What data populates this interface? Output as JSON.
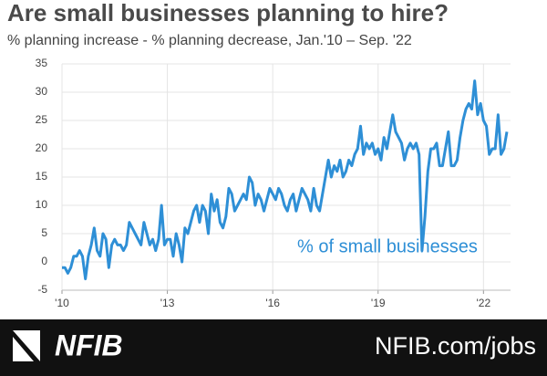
{
  "chart_data": {
    "type": "line",
    "title": "Are small businesses planning to hire?",
    "subtitle": "% planning increase - % planning decrease, Jan.'10 – Sep. '22",
    "categories": [
      "'10",
      null,
      null,
      null,
      null,
      null,
      null,
      null,
      null,
      null,
      null,
      null,
      null,
      null,
      null,
      null,
      null,
      null,
      null,
      null,
      null,
      null,
      null,
      null,
      null,
      null,
      null,
      null,
      null,
      null,
      null,
      null,
      null,
      null,
      null,
      null,
      "'13",
      null,
      null,
      null,
      null,
      null,
      null,
      null,
      null,
      null,
      null,
      null,
      null,
      null,
      null,
      null,
      null,
      null,
      null,
      null,
      null,
      null,
      null,
      null,
      null,
      null,
      null,
      null,
      null,
      null,
      null,
      null,
      null,
      null,
      null,
      null,
      "'16",
      null,
      null,
      null,
      null,
      null,
      null,
      null,
      null,
      null,
      null,
      null,
      null,
      null,
      null,
      null,
      null,
      null,
      null,
      null,
      null,
      null,
      null,
      null,
      null,
      null,
      null,
      null,
      null,
      null,
      null,
      null,
      null,
      null,
      null,
      null,
      "'19",
      null,
      null,
      null,
      null,
      null,
      null,
      null,
      null,
      null,
      null,
      null,
      null,
      null,
      null,
      null,
      null,
      null,
      null,
      null,
      null,
      null,
      null,
      null,
      null,
      null,
      null,
      null,
      null,
      null,
      null,
      null,
      null,
      null,
      null,
      null,
      "'22",
      null,
      null,
      null,
      null,
      null,
      null,
      null,
      null
    ],
    "series": [
      {
        "name": "% of small businesses",
        "color": "#2e8fd6",
        "values": [
          -1,
          -1,
          -2,
          -1,
          1,
          1,
          2,
          1,
          -3,
          1,
          3,
          6,
          2,
          1,
          5,
          4,
          -1,
          3,
          4,
          3,
          3,
          2,
          3,
          7,
          6,
          5,
          4,
          3,
          7,
          5,
          3,
          4,
          2,
          4,
          10,
          3,
          4,
          4,
          1,
          5,
          3,
          0,
          6,
          5,
          7,
          9,
          10,
          7,
          10,
          9,
          5,
          12,
          9,
          11,
          7,
          6,
          8,
          13,
          12,
          9,
          10,
          11,
          12,
          11,
          15,
          14,
          10,
          12,
          11,
          9,
          11,
          13,
          12,
          11,
          13,
          12,
          10,
          9,
          11,
          12,
          9,
          11,
          13,
          12,
          11,
          9,
          13,
          10,
          9,
          12,
          15,
          18,
          15,
          17,
          16,
          18,
          15,
          16,
          18,
          17,
          19,
          20,
          24,
          19,
          21,
          20,
          21,
          19,
          20,
          18,
          22,
          20,
          23,
          26,
          23,
          22,
          21,
          18,
          20,
          21,
          20,
          21,
          19,
          2,
          8,
          16,
          20,
          20,
          21,
          17,
          17,
          20,
          23,
          17,
          17,
          18,
          22,
          25,
          27,
          28,
          27,
          32,
          26,
          28,
          25,
          24,
          19,
          20,
          20,
          26,
          19,
          20,
          23
        ]
      }
    ],
    "ylim": [
      -5,
      35
    ],
    "yticks": [
      -5,
      0,
      5,
      10,
      15,
      20,
      25,
      30,
      35
    ],
    "grid": true
  },
  "footer": {
    "logo": "NFIB",
    "link": "NFIB.com/jobs"
  }
}
